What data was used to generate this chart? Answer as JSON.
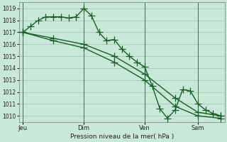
{
  "xlabel": "Pression niveau de la mer( hPa )",
  "background_color": "#c8e8d8",
  "grid_color": "#a8c8b8",
  "line_color": "#1a5c2a",
  "ylim": [
    1009.5,
    1019.5
  ],
  "yticks": [
    1010,
    1011,
    1012,
    1013,
    1014,
    1015,
    1016,
    1017,
    1018,
    1019
  ],
  "xtick_labels": [
    "Jeu",
    "Dim",
    "Ven",
    "Sam"
  ],
  "xtick_positions": [
    0,
    8,
    16,
    23
  ],
  "total_points": 27,
  "series1_x": [
    0,
    1,
    2,
    3,
    4,
    5,
    6,
    7,
    8,
    9,
    10,
    11,
    12,
    13,
    14,
    15,
    16,
    17,
    18,
    19,
    20,
    21,
    22,
    23,
    24,
    25,
    26
  ],
  "series1_y": [
    1017.0,
    1017.5,
    1018.0,
    1018.3,
    1018.3,
    1018.3,
    1018.2,
    1018.3,
    1019.0,
    1018.4,
    1017.0,
    1016.3,
    1016.4,
    1015.6,
    1015.0,
    1014.5,
    1014.1,
    1012.5,
    1010.6,
    1009.8,
    1010.5,
    1012.2,
    1012.1,
    1011.0,
    1010.5,
    1010.2,
    1010.0
  ],
  "series2_x": [
    0,
    4,
    8,
    12,
    16,
    20,
    23,
    26
  ],
  "series2_y": [
    1017.0,
    1016.5,
    1016.0,
    1015.0,
    1013.5,
    1011.5,
    1010.3,
    1010.0
  ],
  "series3_x": [
    0,
    4,
    8,
    12,
    16,
    20,
    23,
    26
  ],
  "series3_y": [
    1017.0,
    1016.3,
    1015.7,
    1014.5,
    1013.0,
    1010.8,
    1010.0,
    1009.8
  ],
  "vline_x": [
    0,
    8,
    16,
    23
  ],
  "marker_size": 3.0,
  "line_width": 1.0
}
